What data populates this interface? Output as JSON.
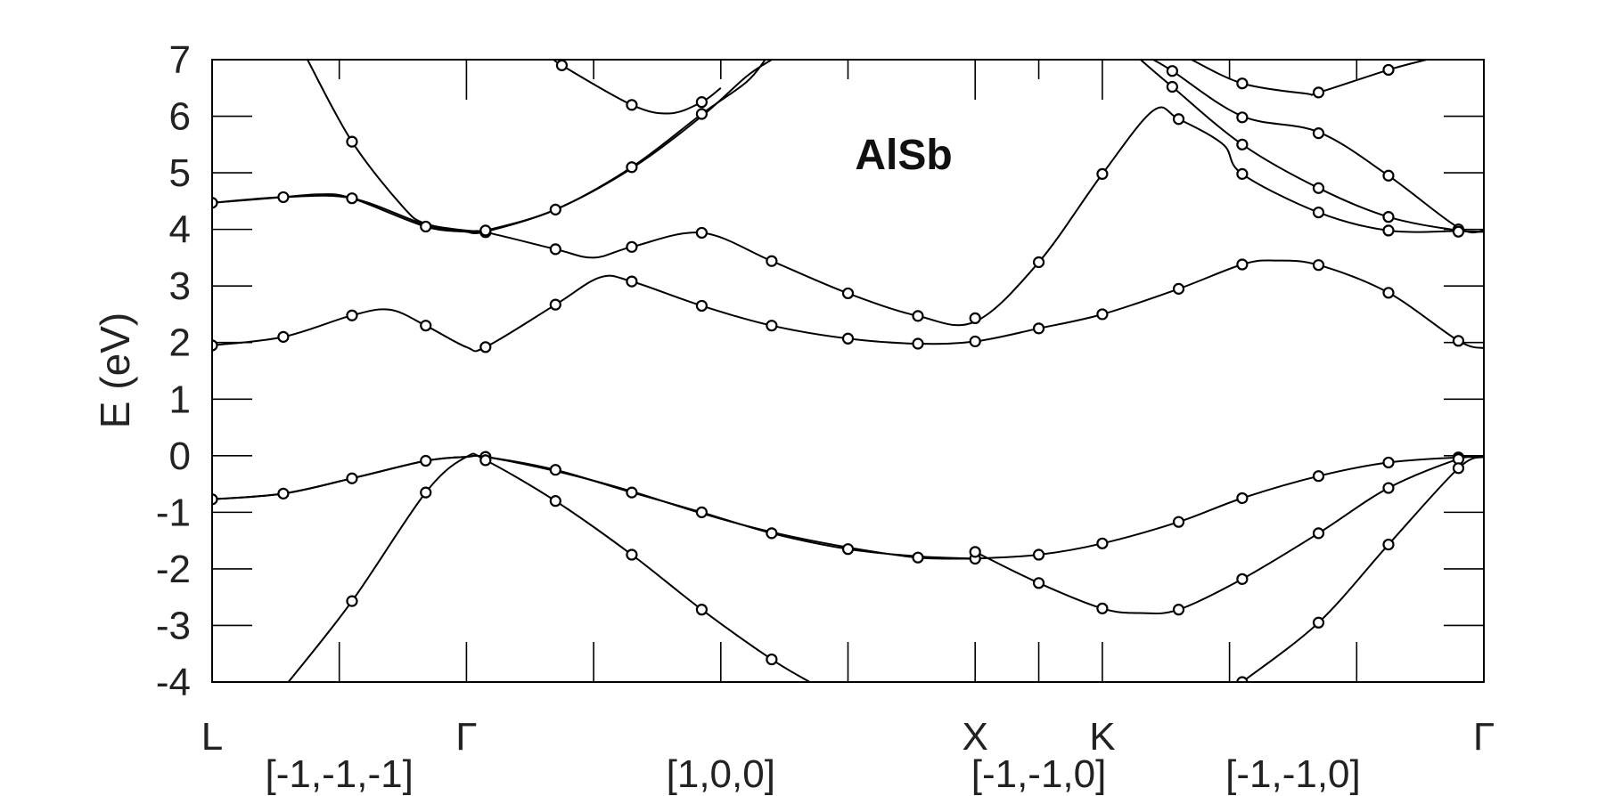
{
  "chart_data": {
    "type": "line",
    "title": "AlSb",
    "ylabel": "E   (eV)",
    "ylim": [
      -4,
      7
    ],
    "xlim": [
      0,
      1
    ],
    "yticks": [
      -4,
      -3,
      -2,
      -1,
      0,
      1,
      2,
      3,
      4,
      5,
      6,
      7
    ],
    "ytick_labels": [
      "-4",
      "-3",
      "-2",
      "-1",
      "0",
      "1",
      "2",
      "3",
      "4",
      "5",
      "6",
      "7"
    ],
    "kpoints": [
      {
        "label": "L",
        "x": 0.0
      },
      {
        "label": "Γ",
        "x": 0.2
      },
      {
        "label": "X",
        "x": 0.6
      },
      {
        "label": "K",
        "x": 0.7
      },
      {
        "label": "Γ",
        "x": 1.0
      }
    ],
    "directions": [
      {
        "label": "[-1,-1,-1]",
        "x": 0.1
      },
      {
        "label": "[1,0,0]",
        "x": 0.4
      },
      {
        "label": "[-1,-1,0]",
        "x": 0.65
      },
      {
        "label": "[-1,-1,0]",
        "x": 0.85
      }
    ],
    "interior_ticks": [
      0.1,
      0.3,
      0.4,
      0.5,
      0.65,
      0.8,
      0.9
    ],
    "bands": [
      {
        "points": [
          [
            0.0,
            -0.77
          ],
          [
            0.056,
            -0.67
          ],
          [
            0.11,
            -0.4
          ],
          [
            0.168,
            -0.09
          ],
          [
            0.2,
            -0.02
          ],
          [
            0.215,
            -0.02
          ],
          [
            0.27,
            -0.25
          ],
          [
            0.33,
            -0.65
          ],
          [
            0.385,
            -1.0
          ],
          [
            0.44,
            -1.37
          ],
          [
            0.5,
            -1.65
          ],
          [
            0.555,
            -1.78
          ],
          [
            0.6,
            -1.82
          ]
        ]
      },
      {
        "points": [
          [
            0.0,
            -0.77
          ],
          [
            0.056,
            -0.67
          ],
          [
            0.11,
            -0.4
          ],
          [
            0.168,
            -0.09
          ],
          [
            0.2,
            -0.02
          ],
          [
            0.215,
            -0.02
          ],
          [
            0.27,
            -0.27
          ],
          [
            0.33,
            -0.63
          ],
          [
            0.385,
            -1.02
          ],
          [
            0.44,
            -1.35
          ],
          [
            0.5,
            -1.62
          ],
          [
            0.555,
            -1.8
          ],
          [
            0.6,
            -1.82
          ]
        ]
      },
      {
        "points": [
          [
            0.06,
            -4.0
          ],
          [
            0.11,
            -2.57
          ],
          [
            0.168,
            -0.65
          ],
          [
            0.2,
            -0.02
          ],
          [
            0.215,
            -0.08
          ],
          [
            0.27,
            -0.8
          ],
          [
            0.33,
            -1.75
          ],
          [
            0.385,
            -2.72
          ],
          [
            0.44,
            -3.6
          ],
          [
            0.47,
            -4.0
          ]
        ]
      },
      {
        "points": [
          [
            0.6,
            -1.82
          ],
          [
            0.65,
            -1.75
          ],
          [
            0.7,
            -1.55
          ],
          [
            0.76,
            -1.17
          ],
          [
            0.81,
            -0.75
          ],
          [
            0.87,
            -0.36
          ],
          [
            0.925,
            -0.12
          ],
          [
            0.98,
            -0.03
          ],
          [
            1.0,
            -0.02
          ]
        ]
      },
      {
        "points": [
          [
            0.6,
            -1.7
          ],
          [
            0.65,
            -2.25
          ],
          [
            0.7,
            -2.7
          ],
          [
            0.73,
            -2.78
          ],
          [
            0.76,
            -2.72
          ],
          [
            0.81,
            -2.18
          ],
          [
            0.87,
            -1.37
          ],
          [
            0.925,
            -0.57
          ],
          [
            0.98,
            -0.06
          ],
          [
            1.0,
            -0.02
          ]
        ]
      },
      {
        "points": [
          [
            0.81,
            -4.0
          ],
          [
            0.87,
            -2.95
          ],
          [
            0.925,
            -1.57
          ],
          [
            0.98,
            -0.22
          ],
          [
            1.0,
            -0.02
          ]
        ]
      },
      {
        "points": [
          [
            0.0,
            1.95
          ],
          [
            0.056,
            2.1
          ],
          [
            0.11,
            2.48
          ],
          [
            0.14,
            2.58
          ],
          [
            0.168,
            2.3
          ],
          [
            0.2,
            1.92
          ],
          [
            0.215,
            1.92
          ],
          [
            0.27,
            2.67
          ],
          [
            0.305,
            3.15
          ],
          [
            0.33,
            3.08
          ],
          [
            0.385,
            2.65
          ],
          [
            0.44,
            2.3
          ],
          [
            0.5,
            2.07
          ],
          [
            0.555,
            1.98
          ],
          [
            0.6,
            2.02
          ],
          [
            0.65,
            2.25
          ],
          [
            0.7,
            2.5
          ],
          [
            0.76,
            2.95
          ],
          [
            0.81,
            3.38
          ],
          [
            0.835,
            3.45
          ],
          [
            0.87,
            3.37
          ],
          [
            0.925,
            2.88
          ],
          [
            0.98,
            2.03
          ],
          [
            1.0,
            1.9
          ]
        ]
      },
      {
        "points": [
          [
            0.0,
            4.47
          ],
          [
            0.056,
            4.57
          ],
          [
            0.085,
            4.62
          ],
          [
            0.11,
            4.55
          ],
          [
            0.168,
            4.05
          ],
          [
            0.2,
            3.96
          ],
          [
            0.215,
            3.95
          ],
          [
            0.27,
            3.65
          ],
          [
            0.3,
            3.5
          ],
          [
            0.33,
            3.69
          ],
          [
            0.385,
            3.94
          ],
          [
            0.44,
            3.44
          ],
          [
            0.5,
            2.87
          ],
          [
            0.555,
            2.47
          ],
          [
            0.6,
            2.37
          ],
          [
            0.65,
            3.42
          ],
          [
            0.7,
            4.98
          ],
          [
            0.74,
            6.1
          ],
          [
            0.76,
            5.95
          ],
          [
            0.795,
            5.5
          ],
          [
            0.81,
            4.98
          ],
          [
            0.87,
            4.3
          ],
          [
            0.925,
            3.98
          ],
          [
            0.98,
            3.97
          ],
          [
            1.0,
            3.96
          ]
        ]
      },
      {
        "points": [
          [
            0.0,
            4.47
          ],
          [
            0.056,
            4.57
          ],
          [
            0.11,
            4.55
          ],
          [
            0.168,
            4.08
          ],
          [
            0.2,
            3.96
          ],
          [
            0.215,
            3.98
          ],
          [
            0.27,
            4.35
          ],
          [
            0.33,
            5.1
          ],
          [
            0.385,
            6.04
          ],
          [
            0.42,
            6.6
          ],
          [
            0.435,
            7.0
          ]
        ]
      },
      {
        "points": [
          [
            0.2,
            3.96
          ],
          [
            0.215,
            3.96
          ],
          [
            0.27,
            4.35
          ],
          [
            0.33,
            5.08
          ],
          [
            0.385,
            6.0
          ],
          [
            0.42,
            6.7
          ],
          [
            0.44,
            7.0
          ]
        ]
      },
      {
        "points": [
          [
            0.075,
            7.0
          ],
          [
            0.11,
            5.55
          ],
          [
            0.15,
            4.4
          ],
          [
            0.168,
            4.1
          ],
          [
            0.2,
            3.98
          ],
          [
            0.215,
            3.97
          ]
        ]
      },
      {
        "points": [
          [
            0.27,
            7.0
          ],
          [
            0.275,
            6.9
          ],
          [
            0.33,
            6.2
          ],
          [
            0.36,
            6.05
          ],
          [
            0.385,
            6.25
          ],
          [
            0.4,
            6.5
          ]
        ]
      },
      {
        "points": [
          [
            0.74,
            7.0
          ],
          [
            0.755,
            6.8
          ],
          [
            0.81,
            6.0
          ],
          [
            0.87,
            5.72
          ],
          [
            0.925,
            4.95
          ],
          [
            0.98,
            4.03
          ],
          [
            1.0,
            3.98
          ]
        ]
      },
      {
        "points": [
          [
            0.73,
            7.0
          ],
          [
            0.755,
            6.52
          ],
          [
            0.81,
            5.5
          ],
          [
            0.87,
            4.73
          ],
          [
            0.925,
            4.22
          ],
          [
            0.98,
            3.98
          ],
          [
            1.0,
            3.96
          ]
        ]
      },
      {
        "points": [
          [
            0.77,
            7.0
          ],
          [
            0.81,
            6.58
          ],
          [
            0.86,
            6.4
          ],
          [
            0.87,
            6.42
          ],
          [
            0.925,
            6.82
          ],
          [
            0.955,
            7.0
          ]
        ]
      }
    ],
    "markers": [
      [
        0.0,
        -0.77
      ],
      [
        0.056,
        -0.67
      ],
      [
        0.11,
        -0.4
      ],
      [
        0.168,
        -0.09
      ],
      [
        0.215,
        -0.02
      ],
      [
        0.215,
        -0.08
      ],
      [
        0.27,
        -0.25
      ],
      [
        0.33,
        -0.65
      ],
      [
        0.385,
        -1.0
      ],
      [
        0.44,
        -1.37
      ],
      [
        0.5,
        -1.65
      ],
      [
        0.555,
        -1.8
      ],
      [
        0.6,
        -1.82
      ],
      [
        0.11,
        -2.57
      ],
      [
        0.168,
        -0.65
      ],
      [
        0.27,
        -0.8
      ],
      [
        0.33,
        -1.75
      ],
      [
        0.385,
        -2.72
      ],
      [
        0.44,
        -3.6
      ],
      [
        0.6,
        -1.7
      ],
      [
        0.65,
        -1.75
      ],
      [
        0.7,
        -1.55
      ],
      [
        0.76,
        -1.17
      ],
      [
        0.81,
        -0.75
      ],
      [
        0.87,
        -0.36
      ],
      [
        0.925,
        -0.12
      ],
      [
        0.98,
        -0.03
      ],
      [
        0.65,
        -2.25
      ],
      [
        0.7,
        -2.7
      ],
      [
        0.76,
        -2.72
      ],
      [
        0.81,
        -2.18
      ],
      [
        0.87,
        -1.37
      ],
      [
        0.925,
        -0.57
      ],
      [
        0.98,
        -0.06
      ],
      [
        0.81,
        -4.0
      ],
      [
        0.87,
        -2.95
      ],
      [
        0.925,
        -1.57
      ],
      [
        0.98,
        -0.22
      ],
      [
        0.0,
        1.95
      ],
      [
        0.056,
        2.1
      ],
      [
        0.11,
        2.48
      ],
      [
        0.168,
        2.3
      ],
      [
        0.215,
        1.92
      ],
      [
        0.27,
        2.67
      ],
      [
        0.33,
        3.08
      ],
      [
        0.385,
        2.65
      ],
      [
        0.44,
        2.3
      ],
      [
        0.5,
        2.07
      ],
      [
        0.555,
        1.98
      ],
      [
        0.6,
        2.02
      ],
      [
        0.65,
        2.25
      ],
      [
        0.7,
        2.5
      ],
      [
        0.76,
        2.95
      ],
      [
        0.81,
        3.38
      ],
      [
        0.87,
        3.37
      ],
      [
        0.925,
        2.88
      ],
      [
        0.98,
        2.03
      ],
      [
        0.0,
        4.47
      ],
      [
        0.056,
        4.57
      ],
      [
        0.11,
        4.55
      ],
      [
        0.168,
        4.05
      ],
      [
        0.215,
        3.95
      ],
      [
        0.215,
        3.98
      ],
      [
        0.27,
        3.65
      ],
      [
        0.33,
        3.69
      ],
      [
        0.385,
        3.94
      ],
      [
        0.44,
        3.44
      ],
      [
        0.5,
        2.87
      ],
      [
        0.555,
        2.47
      ],
      [
        0.6,
        2.43
      ],
      [
        0.65,
        3.42
      ],
      [
        0.7,
        4.98
      ],
      [
        0.76,
        5.95
      ],
      [
        0.81,
        4.98
      ],
      [
        0.87,
        4.3
      ],
      [
        0.925,
        3.98
      ],
      [
        0.98,
        4.0
      ],
      [
        0.98,
        3.96
      ],
      [
        0.27,
        4.35
      ],
      [
        0.33,
        5.1
      ],
      [
        0.385,
        6.04
      ],
      [
        0.11,
        5.55
      ],
      [
        0.275,
        6.9
      ],
      [
        0.33,
        6.2
      ],
      [
        0.385,
        6.25
      ],
      [
        0.755,
        6.8
      ],
      [
        0.81,
        5.98
      ],
      [
        0.87,
        5.7
      ],
      [
        0.925,
        4.95
      ],
      [
        0.755,
        6.52
      ],
      [
        0.81,
        5.5
      ],
      [
        0.87,
        4.73
      ],
      [
        0.925,
        4.22
      ],
      [
        0.81,
        6.58
      ],
      [
        0.87,
        6.42
      ],
      [
        0.925,
        6.82
      ]
    ]
  }
}
